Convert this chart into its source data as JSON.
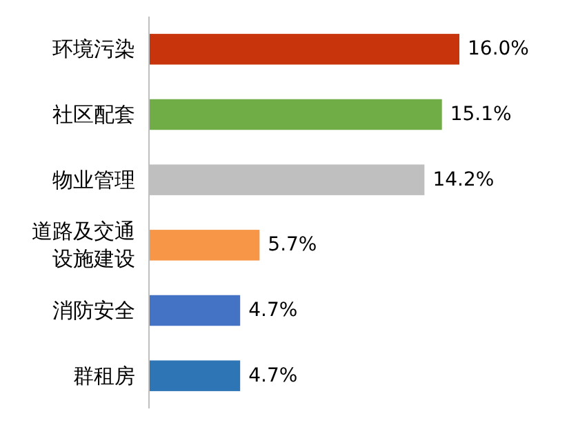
{
  "chart_data": {
    "type": "bar",
    "orientation": "horizontal",
    "data_labels": true,
    "categories": [
      "环境污染",
      "社区配套",
      "物业管理",
      "道路及交通设施建设",
      "消防安全",
      "群租房"
    ],
    "values": [
      16.0,
      15.1,
      14.2,
      5.7,
      4.7,
      4.7
    ],
    "value_labels": [
      "16.0%",
      "15.1%",
      "14.2%",
      "5.7%",
      "4.7%",
      "4.7%"
    ],
    "colors": [
      "#c8350c",
      "#70ad47",
      "#bfbfbf",
      "#f79646",
      "#4472c4",
      "#2e75b6"
    ]
  }
}
